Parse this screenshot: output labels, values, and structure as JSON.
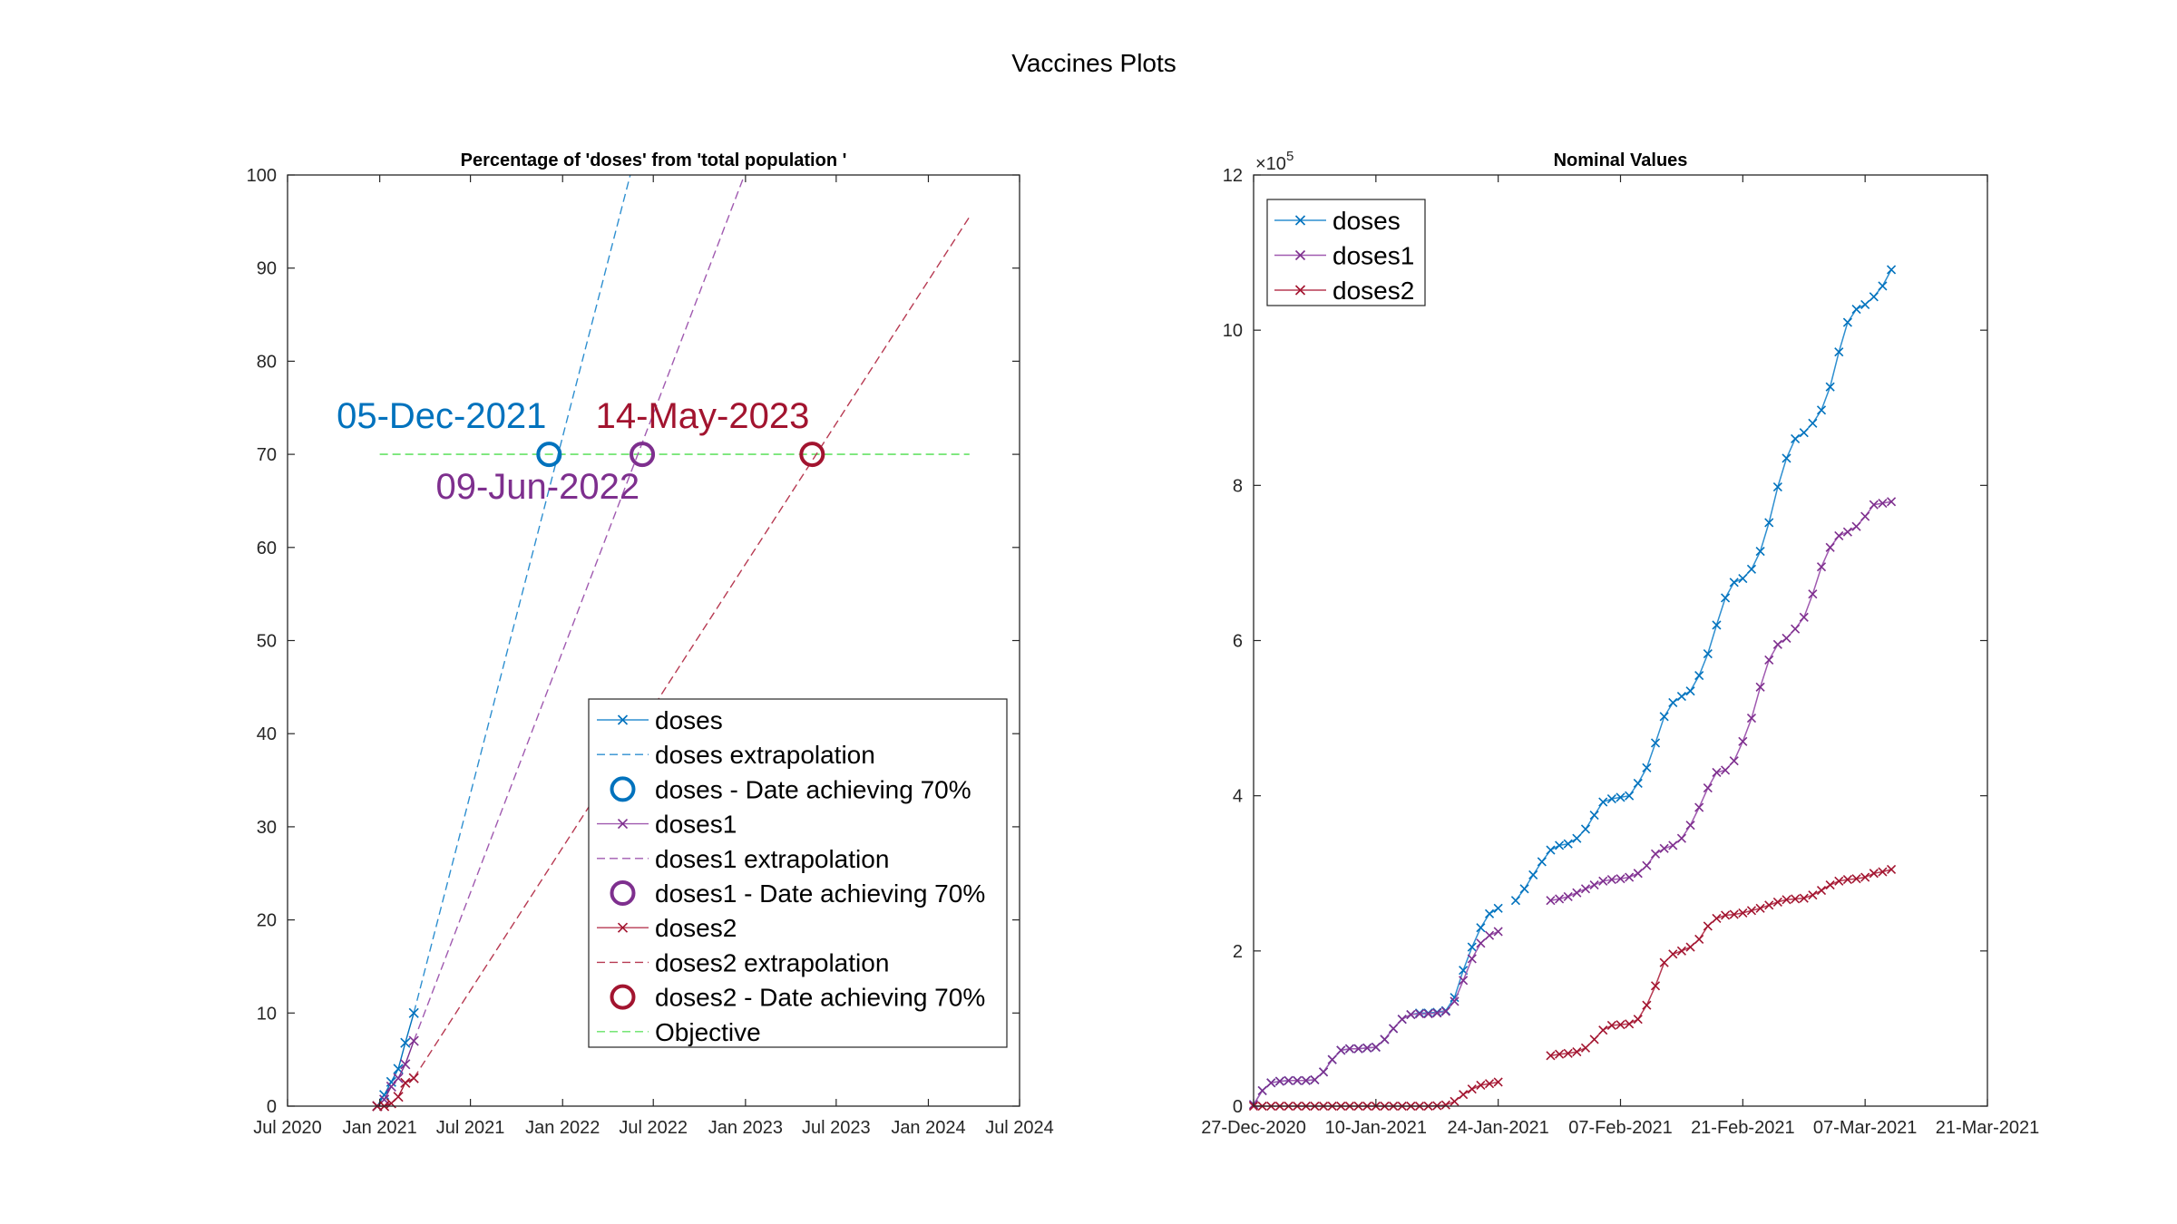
{
  "figure": {
    "title": "Vaccines Plots"
  },
  "colors": {
    "doses": "#0072BD",
    "doses1": "#7E2F8E",
    "doses2": "#A2142F",
    "doses_line": "#2E8FD0",
    "doses1_line": "#A05AB0",
    "doses2_line": "#B73A52",
    "objective": "#66E266"
  },
  "chart_data": [
    {
      "type": "line",
      "title": "Percentage of 'doses' from 'total population '",
      "xlabel": "",
      "ylabel": "",
      "x_ticks": [
        "Jul 2020",
        "Jan 2021",
        "Jul 2021",
        "Jan 2022",
        "Jul 2022",
        "Jan 2023",
        "Jul 2023",
        "Jan 2024",
        "Jul 2024"
      ],
      "y_ticks": [
        "0",
        "10",
        "20",
        "30",
        "40",
        "50",
        "60",
        "70",
        "80",
        "90",
        "100"
      ],
      "xlim": [
        "2020-07-01",
        "2024-07-01"
      ],
      "ylim": [
        0,
        100
      ],
      "legend_position": "bottom-right",
      "legend": [
        {
          "label": "doses",
          "style": "line-x",
          "color": "doses"
        },
        {
          "label": "doses extrapolation",
          "style": "dashed",
          "color": "doses"
        },
        {
          "label": "doses - Date achieving 70%",
          "style": "circle",
          "color": "doses"
        },
        {
          "label": "doses1",
          "style": "line-x",
          "color": "doses1"
        },
        {
          "label": "doses1 extrapolation",
          "style": "dashed",
          "color": "doses1"
        },
        {
          "label": "doses1 - Date achieving 70%",
          "style": "circle",
          "color": "doses1"
        },
        {
          "label": "doses2",
          "style": "line-x",
          "color": "doses2"
        },
        {
          "label": "doses2 extrapolation",
          "style": "dashed",
          "color": "doses2"
        },
        {
          "label": "doses2 - Date achieving 70%",
          "style": "circle",
          "color": "doses2"
        },
        {
          "label": "Objective",
          "style": "dashed",
          "color": "objective"
        }
      ],
      "objective": {
        "y": 70,
        "x_from": "2021-01-01",
        "x_to": "2024-03-23"
      },
      "series": [
        {
          "name": "doses",
          "color": "doses",
          "x": [
            "2020-12-27",
            "2021-01-10",
            "2021-01-24",
            "2021-02-07",
            "2021-02-21",
            "2021-03-10"
          ],
          "y": [
            0.0,
            1.2,
            2.6,
            4.0,
            6.8,
            10.0
          ]
        },
        {
          "name": "doses1",
          "color": "doses1",
          "x": [
            "2020-12-27",
            "2021-01-10",
            "2021-01-24",
            "2021-02-07",
            "2021-02-21",
            "2021-03-10"
          ],
          "y": [
            0.0,
            0.7,
            2.1,
            3.0,
            4.5,
            7.0
          ]
        },
        {
          "name": "doses2",
          "color": "doses2",
          "x": [
            "2020-12-27",
            "2021-01-10",
            "2021-01-24",
            "2021-02-07",
            "2021-02-21",
            "2021-03-10"
          ],
          "y": [
            0.0,
            0.0,
            0.3,
            1.0,
            2.5,
            3.0
          ]
        }
      ],
      "extrapolations": [
        {
          "name": "doses extrapolation",
          "color": "doses",
          "x": [
            "2021-03-10",
            "2022-05-16"
          ],
          "y": [
            10,
            100
          ]
        },
        {
          "name": "doses1 extrapolation",
          "color": "doses1",
          "x": [
            "2021-03-10",
            "2022-12-30"
          ],
          "y": [
            7,
            100
          ]
        },
        {
          "name": "doses2 extrapolation",
          "color": "doses2",
          "x": [
            "2021-03-10",
            "2024-03-23"
          ],
          "y": [
            3,
            95.5
          ]
        }
      ],
      "achievements": [
        {
          "series": "doses",
          "date": "2021-12-05",
          "y": 70,
          "label": "05-Dec-2021",
          "label_anchor": "end",
          "label_side": "above",
          "color": "doses"
        },
        {
          "series": "doses1",
          "date": "2022-06-09",
          "y": 70,
          "label": "09-Jun-2022",
          "label_anchor": "end",
          "label_side": "below",
          "color": "doses1"
        },
        {
          "series": "doses2",
          "date": "2023-05-14",
          "y": 70,
          "label": "14-May-2023",
          "label_anchor": "end",
          "label_side": "above",
          "color": "doses2"
        }
      ]
    },
    {
      "type": "line",
      "title": "Nominal Values",
      "xlabel": "",
      "ylabel": "",
      "y_exponent": "×10^5",
      "x_ticks": [
        "27-Dec-2020",
        "10-Jan-2021",
        "24-Jan-2021",
        "07-Feb-2021",
        "21-Feb-2021",
        "07-Mar-2021",
        "21-Mar-2021"
      ],
      "y_ticks": [
        "0",
        "2",
        "4",
        "6",
        "8",
        "10",
        "12"
      ],
      "xlim": [
        "2020-12-27",
        "2021-03-21"
      ],
      "ylim": [
        0,
        1200000
      ],
      "legend_position": "top-left",
      "legend": [
        {
          "label": "doses",
          "color": "doses"
        },
        {
          "label": "doses1",
          "color": "doses1"
        },
        {
          "label": "doses2",
          "color": "doses2"
        }
      ],
      "series": [
        {
          "name": "doses",
          "color": "doses",
          "segments": [
            {
              "x": [
                "2020-12-27",
                "2020-12-28",
                "2020-12-29",
                "2020-12-30",
                "2020-12-31",
                "2021-01-01",
                "2021-01-02",
                "2021-01-03",
                "2021-01-04",
                "2021-01-05",
                "2021-01-06",
                "2021-01-07",
                "2021-01-08",
                "2021-01-09",
                "2021-01-10",
                "2021-01-11",
                "2021-01-12",
                "2021-01-13",
                "2021-01-14",
                "2021-01-15",
                "2021-01-16",
                "2021-01-17",
                "2021-01-18",
                "2021-01-19",
                "2021-01-20",
                "2021-01-21",
                "2021-01-22",
                "2021-01-23",
                "2021-01-24"
              ],
              "y": [
                2000,
                20000,
                30000,
                32000,
                33000,
                33000,
                33000,
                34000,
                44000,
                60000,
                72000,
                74000,
                74000,
                75000,
                76000,
                86000,
                100000,
                112000,
                118000,
                120000,
                120000,
                121000,
                123000,
                140000,
                175000,
                205000,
                230000,
                248000,
                255000
              ]
            },
            {
              "x": [
                "2021-01-26",
                "2021-01-27",
                "2021-01-28",
                "2021-01-29",
                "2021-01-30",
                "2021-01-31",
                "2021-02-01",
                "2021-02-02",
                "2021-02-03",
                "2021-02-04",
                "2021-02-05",
                "2021-02-06",
                "2021-02-07",
                "2021-02-08",
                "2021-02-09",
                "2021-02-10",
                "2021-02-11",
                "2021-02-12",
                "2021-02-13",
                "2021-02-14",
                "2021-02-15",
                "2021-02-16",
                "2021-02-17",
                "2021-02-18",
                "2021-02-19",
                "2021-02-20",
                "2021-02-21",
                "2021-02-22",
                "2021-02-23",
                "2021-02-24",
                "2021-02-25",
                "2021-02-26",
                "2021-02-27",
                "2021-02-28",
                "2021-03-01",
                "2021-03-02",
                "2021-03-03",
                "2021-03-04",
                "2021-03-05",
                "2021-03-06",
                "2021-03-07",
                "2021-03-08",
                "2021-03-09",
                "2021-03-10"
              ],
              "y": [
                265000,
                280000,
                298000,
                315000,
                330000,
                336000,
                338000,
                345000,
                357000,
                375000,
                392000,
                396000,
                398000,
                400000,
                416000,
                436000,
                468000,
                502000,
                520000,
                528000,
                535000,
                555000,
                583000,
                620000,
                655000,
                675000,
                680000,
                692000,
                715000,
                752000,
                798000,
                835000,
                860000,
                868000,
                880000,
                897000,
                927000,
                972000,
                1010000,
                1027000,
                1033000,
                1043000,
                1057000,
                1078000
              ]
            }
          ]
        },
        {
          "name": "doses1",
          "color": "doses1",
          "segments": [
            {
              "x": [
                "2020-12-27",
                "2020-12-28",
                "2020-12-29",
                "2020-12-30",
                "2020-12-31",
                "2021-01-01",
                "2021-01-02",
                "2021-01-03",
                "2021-01-04",
                "2021-01-05",
                "2021-01-06",
                "2021-01-07",
                "2021-01-08",
                "2021-01-09",
                "2021-01-10",
                "2021-01-11",
                "2021-01-12",
                "2021-01-13",
                "2021-01-14",
                "2021-01-15",
                "2021-01-16",
                "2021-01-17",
                "2021-01-18",
                "2021-01-19",
                "2021-01-20",
                "2021-01-21",
                "2021-01-22",
                "2021-01-23",
                "2021-01-24"
              ],
              "y": [
                2000,
                20000,
                30000,
                32000,
                33000,
                33000,
                33000,
                34000,
                44000,
                60000,
                72000,
                74000,
                74000,
                75000,
                76000,
                86000,
                100000,
                112000,
                118000,
                119000,
                119000,
                120000,
                122000,
                135000,
                162000,
                190000,
                210000,
                220000,
                225000
              ]
            },
            {
              "x": [
                "2021-01-30",
                "2021-01-31",
                "2021-02-01",
                "2021-02-02",
                "2021-02-03",
                "2021-02-04",
                "2021-02-05",
                "2021-02-06",
                "2021-02-07",
                "2021-02-08",
                "2021-02-09",
                "2021-02-10",
                "2021-02-11",
                "2021-02-12",
                "2021-02-13",
                "2021-02-14",
                "2021-02-15",
                "2021-02-16",
                "2021-02-17",
                "2021-02-18",
                "2021-02-19",
                "2021-02-20",
                "2021-02-21",
                "2021-02-22",
                "2021-02-23",
                "2021-02-24",
                "2021-02-25",
                "2021-02-26",
                "2021-02-27",
                "2021-02-28",
                "2021-03-01",
                "2021-03-02",
                "2021-03-03",
                "2021-03-04",
                "2021-03-05",
                "2021-03-06",
                "2021-03-07",
                "2021-03-08",
                "2021-03-09",
                "2021-03-10"
              ],
              "y": [
                265000,
                267000,
                270000,
                275000,
                280000,
                285000,
                290000,
                292000,
                293000,
                295000,
                300000,
                310000,
                325000,
                332000,
                336000,
                345000,
                362000,
                385000,
                410000,
                430000,
                433000,
                445000,
                470000,
                500000,
                540000,
                575000,
                595000,
                603000,
                615000,
                630000,
                660000,
                695000,
                720000,
                735000,
                740000,
                747000,
                760000,
                775000,
                777000,
                779000
              ]
            }
          ]
        },
        {
          "name": "doses2",
          "color": "doses2",
          "segments": [
            {
              "x": [
                "2020-12-27",
                "2020-12-28",
                "2020-12-29",
                "2020-12-30",
                "2020-12-31",
                "2021-01-01",
                "2021-01-02",
                "2021-01-03",
                "2021-01-04",
                "2021-01-05",
                "2021-01-06",
                "2021-01-07",
                "2021-01-08",
                "2021-01-09",
                "2021-01-10",
                "2021-01-11",
                "2021-01-12",
                "2021-01-13",
                "2021-01-14",
                "2021-01-15",
                "2021-01-16",
                "2021-01-17",
                "2021-01-18",
                "2021-01-19",
                "2021-01-20",
                "2021-01-21",
                "2021-01-22",
                "2021-01-23",
                "2021-01-24"
              ],
              "y": [
                0,
                0,
                0,
                0,
                0,
                0,
                0,
                0,
                0,
                0,
                0,
                0,
                0,
                0,
                0,
                0,
                0,
                0,
                0,
                0,
                0,
                500,
                1500,
                6000,
                15000,
                22000,
                27000,
                29000,
                31000
              ]
            },
            {
              "x": [
                "2021-01-30",
                "2021-01-31",
                "2021-02-01",
                "2021-02-02",
                "2021-02-03",
                "2021-02-04",
                "2021-02-05",
                "2021-02-06",
                "2021-02-07",
                "2021-02-08",
                "2021-02-09",
                "2021-02-10",
                "2021-02-11",
                "2021-02-12",
                "2021-02-13",
                "2021-02-14",
                "2021-02-15",
                "2021-02-16",
                "2021-02-17",
                "2021-02-18",
                "2021-02-19",
                "2021-02-20",
                "2021-02-21",
                "2021-02-22",
                "2021-02-23",
                "2021-02-24",
                "2021-02-25",
                "2021-02-26",
                "2021-02-27",
                "2021-02-28",
                "2021-03-01",
                "2021-03-02",
                "2021-03-03",
                "2021-03-04",
                "2021-03-05",
                "2021-03-06",
                "2021-03-07",
                "2021-03-08",
                "2021-03-09",
                "2021-03-10"
              ],
              "y": [
                65000,
                67000,
                68000,
                70000,
                75000,
                86000,
                98000,
                104000,
                105000,
                106000,
                112000,
                130000,
                155000,
                185000,
                196000,
                200000,
                205000,
                215000,
                232000,
                242000,
                246000,
                247000,
                249000,
                252000,
                255000,
                259000,
                263000,
                266000,
                267000,
                268000,
                272000,
                278000,
                285000,
                290000,
                292000,
                293000,
                295000,
                300000,
                302000,
                305000
              ]
            }
          ]
        }
      ]
    }
  ]
}
